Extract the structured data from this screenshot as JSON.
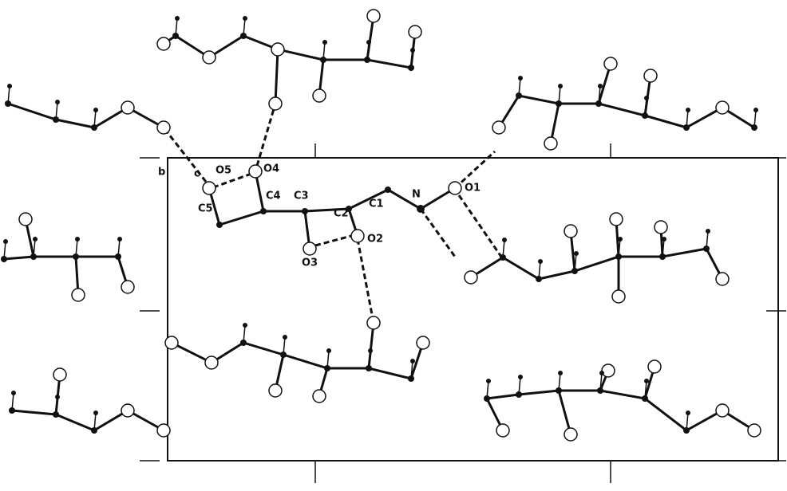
{
  "axis_labels": {
    "b": "b",
    "c": "c"
  },
  "atom_labels": [
    "O5",
    "O4",
    "C5",
    "C4",
    "C3",
    "C2",
    "C1",
    "N",
    "O1",
    "O2",
    "O3"
  ]
}
